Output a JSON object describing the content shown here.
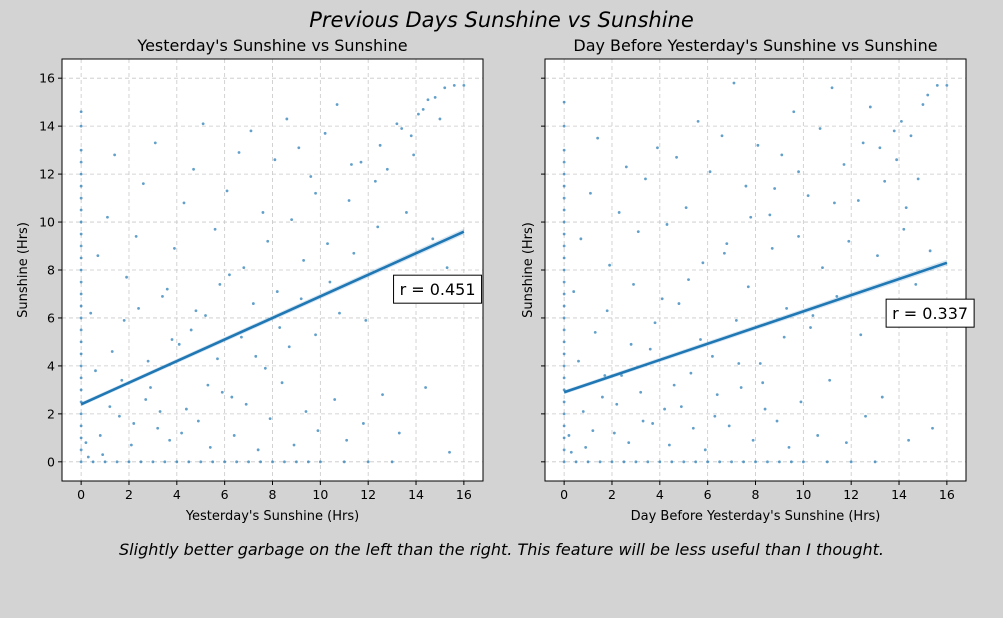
{
  "figure": {
    "suptitle": "Previous Days Sunshine vs Sunshine",
    "caption": "Slightly better garbage on the left than the right. This feature will be less useful than I thought.",
    "background": "#d3d3d3",
    "point_color": "#1f77b4"
  },
  "chart_data": [
    {
      "type": "scatter",
      "title": "Yesterday's Sunshine vs Sunshine",
      "xlabel": "Yesterday's Sunshine (Hrs)",
      "ylabel": "Sunshine (Hrs)",
      "xlim": [
        -0.8,
        16.8
      ],
      "ylim": [
        -0.8,
        16.8
      ],
      "xticks": [
        0,
        2,
        4,
        6,
        8,
        10,
        12,
        14,
        16
      ],
      "yticks": [
        0,
        2,
        4,
        6,
        8,
        10,
        12,
        14,
        16
      ],
      "grid": true,
      "regression": {
        "x": [
          0,
          16
        ],
        "y": [
          2.4,
          9.6
        ]
      },
      "annotation": "r = 0.451",
      "annotation_pos": {
        "x": 14.9,
        "y": 7.2
      },
      "scatter_points": [
        [
          0,
          0
        ],
        [
          0,
          0.5
        ],
        [
          0,
          1
        ],
        [
          0,
          1.5
        ],
        [
          0,
          2
        ],
        [
          0,
          2.5
        ],
        [
          0,
          3
        ],
        [
          0,
          3.5
        ],
        [
          0,
          4
        ],
        [
          0,
          4.5
        ],
        [
          0,
          5
        ],
        [
          0,
          5.5
        ],
        [
          0,
          6
        ],
        [
          0,
          6.5
        ],
        [
          0,
          7
        ],
        [
          0,
          7.5
        ],
        [
          0,
          8
        ],
        [
          0,
          8.5
        ],
        [
          0,
          9
        ],
        [
          0,
          9.5
        ],
        [
          0,
          10
        ],
        [
          0,
          10.5
        ],
        [
          0,
          11
        ],
        [
          0,
          11.5
        ],
        [
          0,
          12
        ],
        [
          0,
          12.5
        ],
        [
          0,
          13
        ],
        [
          0,
          14
        ],
        [
          0,
          14.6
        ],
        [
          0.3,
          0.2
        ],
        [
          0.5,
          0
        ],
        [
          0.8,
          1.1
        ],
        [
          1,
          0
        ],
        [
          1.2,
          2.3
        ],
        [
          1.5,
          0
        ],
        [
          1.7,
          3.4
        ],
        [
          2,
          0
        ],
        [
          2.2,
          1.6
        ],
        [
          2.5,
          0
        ],
        [
          2.8,
          4.2
        ],
        [
          3,
          0
        ],
        [
          3.3,
          2.1
        ],
        [
          3.5,
          0
        ],
        [
          3.8,
          5.1
        ],
        [
          4,
          0
        ],
        [
          4.2,
          1.2
        ],
        [
          4.5,
          0
        ],
        [
          4.8,
          6.3
        ],
        [
          5,
          0
        ],
        [
          5.3,
          3.2
        ],
        [
          5.5,
          0
        ],
        [
          5.8,
          7.4
        ],
        [
          6,
          0
        ],
        [
          6.3,
          2.7
        ],
        [
          6.5,
          0
        ],
        [
          6.8,
          8.1
        ],
        [
          7,
          0
        ],
        [
          7.3,
          4.4
        ],
        [
          7.5,
          0
        ],
        [
          7.8,
          9.2
        ],
        [
          8,
          0
        ],
        [
          8.3,
          5.6
        ],
        [
          8.5,
          0
        ],
        [
          8.8,
          10.1
        ],
        [
          9,
          0
        ],
        [
          9.2,
          6.8
        ],
        [
          9.5,
          0
        ],
        [
          9.8,
          11.2
        ],
        [
          10,
          0
        ],
        [
          10.4,
          7.5
        ],
        [
          11,
          0
        ],
        [
          11.3,
          12.4
        ],
        [
          12,
          0
        ],
        [
          12.5,
          13.2
        ],
        [
          13,
          0
        ],
        [
          13.2,
          14.1
        ],
        [
          13.8,
          13.6
        ],
        [
          14.1,
          14.5
        ],
        [
          14.5,
          15.1
        ],
        [
          15,
          14.3
        ],
        [
          15.2,
          15.6
        ],
        [
          15.6,
          15.7
        ],
        [
          16,
          15.7
        ],
        [
          0.4,
          6.2
        ],
        [
          0.7,
          8.6
        ],
        [
          1.1,
          10.2
        ],
        [
          1.4,
          12.8
        ],
        [
          1.9,
          7.7
        ],
        [
          2.3,
          9.4
        ],
        [
          2.6,
          11.6
        ],
        [
          3.1,
          13.3
        ],
        [
          3.4,
          6.9
        ],
        [
          3.9,
          8.9
        ],
        [
          4.3,
          10.8
        ],
        [
          4.7,
          12.2
        ],
        [
          5.1,
          14.1
        ],
        [
          5.6,
          9.7
        ],
        [
          6.1,
          11.3
        ],
        [
          6.6,
          12.9
        ],
        [
          7.1,
          13.8
        ],
        [
          7.6,
          10.4
        ],
        [
          8.1,
          12.6
        ],
        [
          8.6,
          14.3
        ],
        [
          9.1,
          13.1
        ],
        [
          9.6,
          11.9
        ],
        [
          10.2,
          13.7
        ],
        [
          10.7,
          14.9
        ],
        [
          11.2,
          10.9
        ],
        [
          11.7,
          12.5
        ],
        [
          12.3,
          11.7
        ],
        [
          12.8,
          12.2
        ],
        [
          13.4,
          13.9
        ],
        [
          13.9,
          12.8
        ],
        [
          14.3,
          14.7
        ],
        [
          14.8,
          15.2
        ],
        [
          0.6,
          3.8
        ],
        [
          1.3,
          4.6
        ],
        [
          1.8,
          5.9
        ],
        [
          2.4,
          6.4
        ],
        [
          2.9,
          3.1
        ],
        [
          3.6,
          7.2
        ],
        [
          4.1,
          4.9
        ],
        [
          4.6,
          5.5
        ],
        [
          5.2,
          6.1
        ],
        [
          5.7,
          4.3
        ],
        [
          6.2,
          7.8
        ],
        [
          6.7,
          5.2
        ],
        [
          7.2,
          6.6
        ],
        [
          7.7,
          3.9
        ],
        [
          8.2,
          7.1
        ],
        [
          8.7,
          4.8
        ],
        [
          9.3,
          8.4
        ],
        [
          9.8,
          5.3
        ],
        [
          10.3,
          9.1
        ],
        [
          10.8,
          6.2
        ],
        [
          11.4,
          8.7
        ],
        [
          11.9,
          5.9
        ],
        [
          12.4,
          9.8
        ],
        [
          13.1,
          7.6
        ],
        [
          13.6,
          10.4
        ],
        [
          14.2,
          6.8
        ],
        [
          14.7,
          9.3
        ],
        [
          15.3,
          8.1
        ],
        [
          0.2,
          0.8
        ],
        [
          0.9,
          0.3
        ],
        [
          1.6,
          1.9
        ],
        [
          2.1,
          0.7
        ],
        [
          2.7,
          2.6
        ],
        [
          3.2,
          1.4
        ],
        [
          3.7,
          0.9
        ],
        [
          4.4,
          2.2
        ],
        [
          4.9,
          1.7
        ],
        [
          5.4,
          0.6
        ],
        [
          5.9,
          2.9
        ],
        [
          6.4,
          1.1
        ],
        [
          6.9,
          2.4
        ],
        [
          7.4,
          0.5
        ],
        [
          7.9,
          1.8
        ],
        [
          8.4,
          3.3
        ],
        [
          8.9,
          0.7
        ],
        [
          9.4,
          2.1
        ],
        [
          9.9,
          1.3
        ],
        [
          10.6,
          2.6
        ],
        [
          11.1,
          0.9
        ],
        [
          11.8,
          1.6
        ],
        [
          12.6,
          2.8
        ],
        [
          13.3,
          1.2
        ],
        [
          14.4,
          3.1
        ],
        [
          15.4,
          0.4
        ]
      ]
    },
    {
      "type": "scatter",
      "title": "Day Before Yesterday's Sunshine vs Sunshine",
      "xlabel": "Day Before Yesterday's Sunshine (Hrs)",
      "ylabel": "Sunshine (Hrs)",
      "xlim": [
        -0.8,
        16.8
      ],
      "ylim": [
        -0.8,
        16.8
      ],
      "xticks": [
        0,
        2,
        4,
        6,
        8,
        10,
        12,
        14,
        16
      ],
      "yticks": [
        0,
        2,
        4,
        6,
        8,
        10,
        12,
        14,
        16
      ],
      "grid": true,
      "regression": {
        "x": [
          0,
          16
        ],
        "y": [
          2.9,
          8.3
        ]
      },
      "annotation": "r = 0.337",
      "annotation_pos": {
        "x": 15.3,
        "y": 6.2
      },
      "scatter_points": [
        [
          0,
          0
        ],
        [
          0,
          0.5
        ],
        [
          0,
          1
        ],
        [
          0,
          1.5
        ],
        [
          0,
          2
        ],
        [
          0,
          2.5
        ],
        [
          0,
          3
        ],
        [
          0,
          3.5
        ],
        [
          0,
          4
        ],
        [
          0,
          4.5
        ],
        [
          0,
          5
        ],
        [
          0,
          5.5
        ],
        [
          0,
          6
        ],
        [
          0,
          6.5
        ],
        [
          0,
          7
        ],
        [
          0,
          7.5
        ],
        [
          0,
          8
        ],
        [
          0,
          8.5
        ],
        [
          0,
          9
        ],
        [
          0,
          9.5
        ],
        [
          0,
          10
        ],
        [
          0,
          10.5
        ],
        [
          0,
          11
        ],
        [
          0,
          11.5
        ],
        [
          0,
          12
        ],
        [
          0,
          12.5
        ],
        [
          0,
          13
        ],
        [
          0,
          14
        ],
        [
          0,
          15
        ],
        [
          0.3,
          0.4
        ],
        [
          0.5,
          0
        ],
        [
          0.8,
          2.1
        ],
        [
          1,
          0
        ],
        [
          1.2,
          1.3
        ],
        [
          1.5,
          0
        ],
        [
          1.7,
          3.6
        ],
        [
          2,
          0
        ],
        [
          2.2,
          2.4
        ],
        [
          2.5,
          0
        ],
        [
          2.8,
          4.9
        ],
        [
          3,
          0
        ],
        [
          3.3,
          1.7
        ],
        [
          3.5,
          0
        ],
        [
          3.8,
          5.8
        ],
        [
          4,
          0
        ],
        [
          4.2,
          2.2
        ],
        [
          4.5,
          0
        ],
        [
          4.8,
          6.6
        ],
        [
          5,
          0
        ],
        [
          5.3,
          3.7
        ],
        [
          5.5,
          0
        ],
        [
          5.8,
          8.3
        ],
        [
          6,
          0
        ],
        [
          6.3,
          1.9
        ],
        [
          6.5,
          0
        ],
        [
          6.8,
          9.1
        ],
        [
          7,
          0
        ],
        [
          7.3,
          4.1
        ],
        [
          7.5,
          0
        ],
        [
          7.8,
          10.2
        ],
        [
          8,
          0
        ],
        [
          8.3,
          3.3
        ],
        [
          8.5,
          0
        ],
        [
          8.8,
          11.4
        ],
        [
          9,
          0
        ],
        [
          9.2,
          5.2
        ],
        [
          9.5,
          0
        ],
        [
          9.8,
          12.1
        ],
        [
          10,
          0
        ],
        [
          10.4,
          6.1
        ],
        [
          11,
          0
        ],
        [
          11.3,
          10.8
        ],
        [
          12,
          0
        ],
        [
          12.5,
          13.3
        ],
        [
          13,
          0
        ],
        [
          13.2,
          13.1
        ],
        [
          13.8,
          13.8
        ],
        [
          14.1,
          14.2
        ],
        [
          14.5,
          13.6
        ],
        [
          15,
          14.9
        ],
        [
          15.2,
          15.3
        ],
        [
          15.6,
          15.7
        ],
        [
          16,
          15.7
        ],
        [
          0.4,
          7.1
        ],
        [
          0.7,
          9.3
        ],
        [
          1.1,
          11.2
        ],
        [
          1.4,
          13.5
        ],
        [
          1.9,
          8.2
        ],
        [
          2.3,
          10.4
        ],
        [
          2.6,
          12.3
        ],
        [
          3.1,
          9.6
        ],
        [
          3.4,
          11.8
        ],
        [
          3.9,
          13.1
        ],
        [
          4.3,
          9.9
        ],
        [
          4.7,
          12.7
        ],
        [
          5.1,
          10.6
        ],
        [
          5.6,
          14.2
        ],
        [
          6.1,
          12.1
        ],
        [
          6.6,
          13.6
        ],
        [
          7.1,
          15.8
        ],
        [
          7.6,
          11.5
        ],
        [
          8.1,
          13.2
        ],
        [
          8.6,
          10.3
        ],
        [
          9.1,
          12.8
        ],
        [
          9.6,
          14.6
        ],
        [
          10.2,
          11.1
        ],
        [
          10.7,
          13.9
        ],
        [
          11.2,
          15.6
        ],
        [
          11.7,
          12.4
        ],
        [
          12.3,
          10.9
        ],
        [
          12.8,
          14.8
        ],
        [
          13.4,
          11.7
        ],
        [
          13.9,
          12.6
        ],
        [
          14.3,
          10.6
        ],
        [
          14.8,
          11.8
        ],
        [
          0.6,
          4.2
        ],
        [
          1.3,
          5.4
        ],
        [
          1.8,
          6.3
        ],
        [
          2.4,
          3.6
        ],
        [
          2.9,
          7.4
        ],
        [
          3.6,
          4.7
        ],
        [
          4.1,
          6.8
        ],
        [
          4.6,
          3.2
        ],
        [
          5.2,
          7.6
        ],
        [
          5.7,
          5.1
        ],
        [
          6.2,
          4.4
        ],
        [
          6.7,
          8.7
        ],
        [
          7.2,
          5.9
        ],
        [
          7.7,
          7.3
        ],
        [
          8.2,
          4.1
        ],
        [
          8.7,
          8.9
        ],
        [
          9.3,
          6.4
        ],
        [
          9.8,
          9.4
        ],
        [
          10.3,
          5.6
        ],
        [
          10.8,
          8.1
        ],
        [
          11.4,
          6.9
        ],
        [
          11.9,
          9.2
        ],
        [
          12.4,
          5.3
        ],
        [
          13.1,
          8.6
        ],
        [
          13.6,
          6.5
        ],
        [
          14.2,
          9.7
        ],
        [
          14.7,
          7.4
        ],
        [
          15.3,
          8.8
        ],
        [
          0.2,
          1.1
        ],
        [
          0.9,
          0.6
        ],
        [
          1.6,
          2.7
        ],
        [
          2.1,
          1.2
        ],
        [
          2.7,
          0.8
        ],
        [
          3.2,
          2.9
        ],
        [
          3.7,
          1.6
        ],
        [
          4.4,
          0.7
        ],
        [
          4.9,
          2.3
        ],
        [
          5.4,
          1.4
        ],
        [
          5.9,
          0.5
        ],
        [
          6.4,
          2.8
        ],
        [
          6.9,
          1.5
        ],
        [
          7.4,
          3.1
        ],
        [
          7.9,
          0.9
        ],
        [
          8.4,
          2.2
        ],
        [
          8.9,
          1.7
        ],
        [
          9.4,
          0.6
        ],
        [
          9.9,
          2.5
        ],
        [
          10.6,
          1.1
        ],
        [
          11.1,
          3.4
        ],
        [
          11.8,
          0.8
        ],
        [
          12.6,
          1.9
        ],
        [
          13.3,
          2.7
        ],
        [
          14.4,
          0.9
        ],
        [
          15.4,
          1.4
        ]
      ]
    }
  ]
}
